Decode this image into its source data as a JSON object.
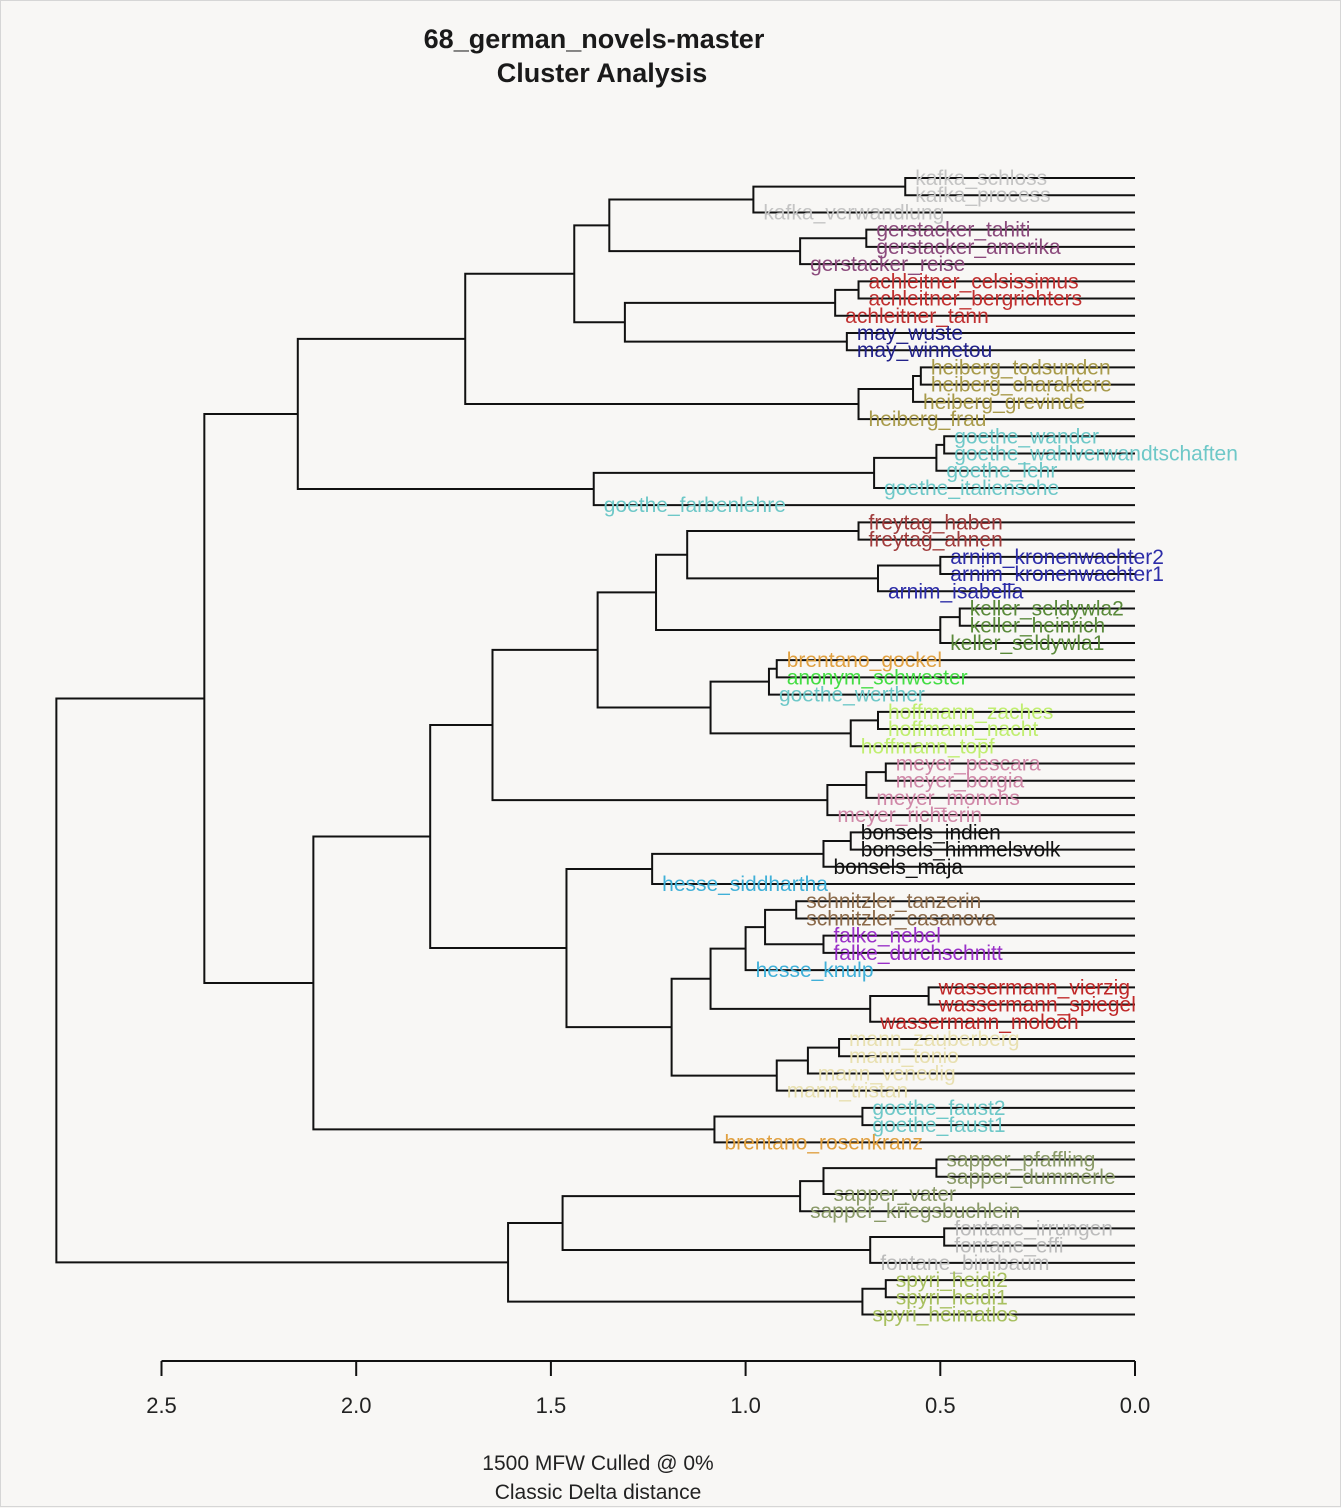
{
  "chart_data": {
    "type": "dendrogram",
    "title": "68_german_novels-master",
    "subtitle": "Cluster Analysis",
    "xlabel_line1": "1500 MFW  Culled @ 0%",
    "xlabel_line2": "Classic Delta distance",
    "xlim": [
      2.5,
      0.0
    ],
    "xticks": [
      {
        "value": 2.5,
        "label": "2.5"
      },
      {
        "value": 2.0,
        "label": "2.0"
      },
      {
        "value": 1.5,
        "label": "1.5"
      },
      {
        "value": 1.0,
        "label": "1.0"
      },
      {
        "value": 0.5,
        "label": "0.5"
      },
      {
        "value": 0.0,
        "label": "0.0"
      }
    ],
    "leaves": [
      {
        "label": "kafka_schloss",
        "color": "#c4c4c4"
      },
      {
        "label": "kafka_process",
        "color": "#c4c4c4"
      },
      {
        "label": "kafka_verwandlung",
        "color": "#c4c4c4"
      },
      {
        "label": "gerstacker_tahiti",
        "color": "#8b4a7c"
      },
      {
        "label": "gerstacker_amerika",
        "color": "#8b4a7c"
      },
      {
        "label": "gerstacker_reise",
        "color": "#8b4a7c"
      },
      {
        "label": "achleitner_celsissimus",
        "color": "#c03030"
      },
      {
        "label": "achleitner_bergrichters",
        "color": "#c03030"
      },
      {
        "label": "achleitner_tann",
        "color": "#c03030"
      },
      {
        "label": "may_wuste",
        "color": "#22228a"
      },
      {
        "label": "may_winnetou",
        "color": "#22228a"
      },
      {
        "label": "heiberg_todsunden",
        "color": "#a89a4a"
      },
      {
        "label": "heiberg_charaktere",
        "color": "#a89a4a"
      },
      {
        "label": "heiberg_grevinde",
        "color": "#a89a4a"
      },
      {
        "label": "heiberg_frau",
        "color": "#a89a4a"
      },
      {
        "label": "goethe_wander",
        "color": "#6ec8c8"
      },
      {
        "label": "goethe_wahlverwandtschaften",
        "color": "#6ec8c8"
      },
      {
        "label": "goethe_lehr",
        "color": "#6ec8c8"
      },
      {
        "label": "goethe_italiensche",
        "color": "#6ec8c8"
      },
      {
        "label": "goethe_farbenlehre",
        "color": "#6ec8c8"
      },
      {
        "label": "freytag_haben",
        "color": "#a03c3c"
      },
      {
        "label": "freytag_ahnen",
        "color": "#a03c3c"
      },
      {
        "label": "arnim_kronenwachter2",
        "color": "#2c2ca8"
      },
      {
        "label": "arnim_kronenwachter1",
        "color": "#2c2ca8"
      },
      {
        "label": "arnim_isabella",
        "color": "#2c2ca8"
      },
      {
        "label": "keller_seldywla2",
        "color": "#5a8a3a"
      },
      {
        "label": "keller_heinrich",
        "color": "#5a8a3a"
      },
      {
        "label": "keller_seldywla1",
        "color": "#5a8a3a"
      },
      {
        "label": "brentano_gockel",
        "color": "#e0a040"
      },
      {
        "label": "anonym_schwester",
        "color": "#44dd44"
      },
      {
        "label": "goethe_werther",
        "color": "#6ec8c8"
      },
      {
        "label": "hoffmann_zaches",
        "color": "#c0ee70"
      },
      {
        "label": "hoffmann_nacht",
        "color": "#c0ee70"
      },
      {
        "label": "hoffmann_topf",
        "color": "#c0ee70"
      },
      {
        "label": "meyer_pescara",
        "color": "#d088a8"
      },
      {
        "label": "meyer_borgia",
        "color": "#d088a8"
      },
      {
        "label": "meyer_monchs",
        "color": "#d088a8"
      },
      {
        "label": "meyer_richterin",
        "color": "#d088a8"
      },
      {
        "label": "bonsels_indien",
        "color": "#111111"
      },
      {
        "label": "bonsels_himmelsvolk",
        "color": "#111111"
      },
      {
        "label": "bonsels_maja",
        "color": "#111111"
      },
      {
        "label": "hesse_siddhartha",
        "color": "#40b0d8"
      },
      {
        "label": "schnitzler_tanzerin",
        "color": "#8b6a4a"
      },
      {
        "label": "schnitzler_casanova",
        "color": "#8b6a4a"
      },
      {
        "label": "falke_nebel",
        "color": "#9a30c8"
      },
      {
        "label": "falke_durchschnitt",
        "color": "#9a30c8"
      },
      {
        "label": "hesse_knulp",
        "color": "#40b0d8"
      },
      {
        "label": "wassermann_vierzig",
        "color": "#c02828"
      },
      {
        "label": "wassermann_spiegel",
        "color": "#c02828"
      },
      {
        "label": "wassermann_moloch",
        "color": "#c02828"
      },
      {
        "label": "mann_zauberberg",
        "color": "#e8e0b0"
      },
      {
        "label": "mann_tonio",
        "color": "#e8e0b0"
      },
      {
        "label": "mann_venedig",
        "color": "#e8e0b0"
      },
      {
        "label": "mann_tristan",
        "color": "#e8e0b0"
      },
      {
        "label": "goethe_faust2",
        "color": "#6ec8c8"
      },
      {
        "label": "goethe_faust1",
        "color": "#6ec8c8"
      },
      {
        "label": "brentano_rosenkranz",
        "color": "#e0a040"
      },
      {
        "label": "sapper_pfaffling",
        "color": "#8a9a68"
      },
      {
        "label": "sapper_dummerle",
        "color": "#8a9a68"
      },
      {
        "label": "sapper_vater",
        "color": "#8a9a68"
      },
      {
        "label": "sapper_kriegsbuchlein",
        "color": "#8a9a68"
      },
      {
        "label": "fontane_irrungen",
        "color": "#bcbcbc"
      },
      {
        "label": "fontane_effi",
        "color": "#bcbcbc"
      },
      {
        "label": "fontane_birnbaum",
        "color": "#bcbcbc"
      },
      {
        "label": "spyri_heidi2",
        "color": "#a8c060"
      },
      {
        "label": "spyri_heidi1",
        "color": "#a8c060"
      },
      {
        "label": "spyri_heimatlos",
        "color": "#a8c060"
      }
    ],
    "merges": [
      {
        "a": "L0",
        "b": "L1",
        "h": 0.59
      },
      {
        "a": "N0",
        "b": "L2",
        "h": 0.98
      },
      {
        "a": "L3",
        "b": "L4",
        "h": 0.69
      },
      {
        "a": "N2",
        "b": "L5",
        "h": 0.86
      },
      {
        "a": "N1",
        "b": "N3",
        "h": 1.35
      },
      {
        "a": "L6",
        "b": "L7",
        "h": 0.71
      },
      {
        "a": "N5",
        "b": "L8",
        "h": 0.77
      },
      {
        "a": "L9",
        "b": "L10",
        "h": 0.74
      },
      {
        "a": "N6",
        "b": "N7",
        "h": 1.31
      },
      {
        "a": "N4",
        "b": "N8",
        "h": 1.44
      },
      {
        "a": "L11",
        "b": "L12",
        "h": 0.55
      },
      {
        "a": "N10",
        "b": "L13",
        "h": 0.57
      },
      {
        "a": "N11",
        "b": "L14",
        "h": 0.71
      },
      {
        "a": "N9",
        "b": "N12",
        "h": 1.72
      },
      {
        "a": "L15",
        "b": "L16",
        "h": 0.49
      },
      {
        "a": "N14",
        "b": "L17",
        "h": 0.51
      },
      {
        "a": "N15",
        "b": "L18",
        "h": 0.67
      },
      {
        "a": "N16",
        "b": "L19",
        "h": 1.39
      },
      {
        "a": "N13",
        "b": "N17",
        "h": 2.15
      },
      {
        "a": "L20",
        "b": "L21",
        "h": 0.71
      },
      {
        "a": "L22",
        "b": "L23",
        "h": 0.5
      },
      {
        "a": "N20",
        "b": "L24",
        "h": 0.66
      },
      {
        "a": "N19",
        "b": "N21",
        "h": 1.15
      },
      {
        "a": "L25",
        "b": "L26",
        "h": 0.45
      },
      {
        "a": "N23",
        "b": "L27",
        "h": 0.5
      },
      {
        "a": "N22",
        "b": "N24",
        "h": 1.23
      },
      {
        "a": "L28",
        "b": "L29",
        "h": 0.92
      },
      {
        "a": "N26",
        "b": "L30",
        "h": 0.94
      },
      {
        "a": "L31",
        "b": "L32",
        "h": 0.66
      },
      {
        "a": "N28",
        "b": "L33",
        "h": 0.73
      },
      {
        "a": "N27",
        "b": "N29",
        "h": 1.09
      },
      {
        "a": "N25",
        "b": "N30",
        "h": 1.38
      },
      {
        "a": "L34",
        "b": "L35",
        "h": 0.64
      },
      {
        "a": "N32",
        "b": "L36",
        "h": 0.69
      },
      {
        "a": "N33",
        "b": "L37",
        "h": 0.79
      },
      {
        "a": "N31",
        "b": "N34",
        "h": 1.65
      },
      {
        "a": "L38",
        "b": "L39",
        "h": 0.73
      },
      {
        "a": "N36",
        "b": "L40",
        "h": 0.8
      },
      {
        "a": "N37",
        "b": "L41",
        "h": 1.24
      },
      {
        "a": "L42",
        "b": "L43",
        "h": 0.87
      },
      {
        "a": "L44",
        "b": "L45",
        "h": 0.8
      },
      {
        "a": "N39",
        "b": "N40",
        "h": 0.95
      },
      {
        "a": "N41",
        "b": "L46",
        "h": 1.0
      },
      {
        "a": "L47",
        "b": "L48",
        "h": 0.53
      },
      {
        "a": "N43",
        "b": "L49",
        "h": 0.68
      },
      {
        "a": "N42",
        "b": "N44",
        "h": 1.09
      },
      {
        "a": "L50",
        "b": "L51",
        "h": 0.76
      },
      {
        "a": "N46",
        "b": "L52",
        "h": 0.84
      },
      {
        "a": "N47",
        "b": "L53",
        "h": 0.92
      },
      {
        "a": "N45",
        "b": "N48",
        "h": 1.19
      },
      {
        "a": "N38",
        "b": "N49",
        "h": 1.46
      },
      {
        "a": "N35",
        "b": "N50",
        "h": 1.81
      },
      {
        "a": "L54",
        "b": "L55",
        "h": 0.7
      },
      {
        "a": "N52",
        "b": "L56",
        "h": 1.08
      },
      {
        "a": "N51",
        "b": "N53",
        "h": 2.11
      },
      {
        "a": "N18",
        "b": "N54",
        "h": 2.39
      },
      {
        "a": "L57",
        "b": "L58",
        "h": 0.51
      },
      {
        "a": "N56",
        "b": "L59",
        "h": 0.8
      },
      {
        "a": "N57",
        "b": "L60",
        "h": 0.86
      },
      {
        "a": "L61",
        "b": "L62",
        "h": 0.49
      },
      {
        "a": "N59",
        "b": "L63",
        "h": 0.68
      },
      {
        "a": "N58",
        "b": "N60",
        "h": 1.47
      },
      {
        "a": "L64",
        "b": "L65",
        "h": 0.64
      },
      {
        "a": "N62",
        "b": "L66",
        "h": 0.7
      },
      {
        "a": "N61",
        "b": "N63",
        "h": 1.61
      },
      {
        "a": "N55",
        "b": "N64",
        "h": 2.77
      }
    ]
  }
}
